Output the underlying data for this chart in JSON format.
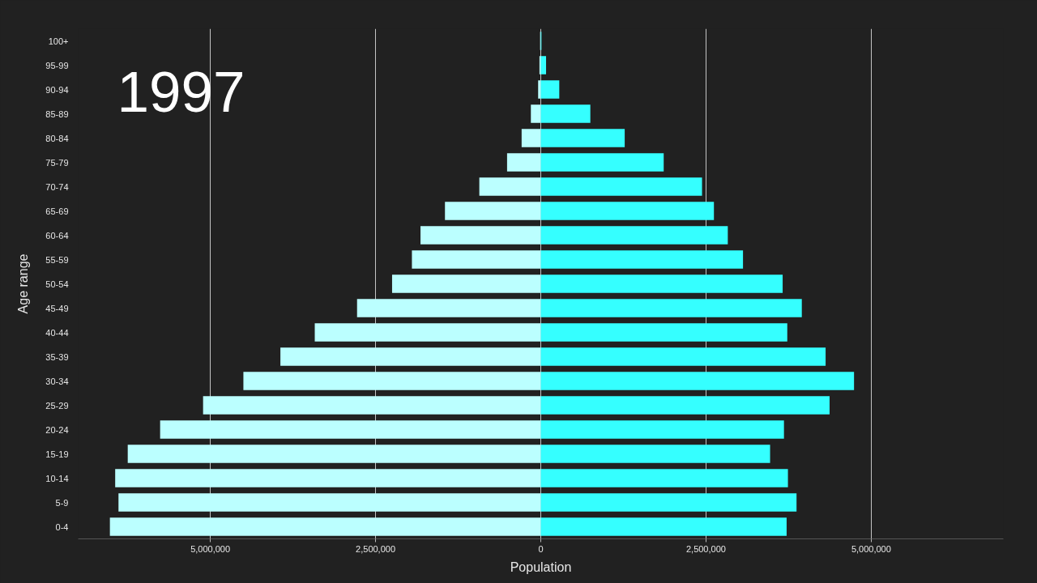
{
  "chart_data": {
    "type": "bar",
    "orientation": "horizontal",
    "stacked": true,
    "xlabel": "Population",
    "ylabel": "Age range",
    "annotations": [
      "1997"
    ],
    "categories": [
      "100+",
      "95-99",
      "90-94",
      "85-89",
      "80-84",
      "75-79",
      "70-74",
      "65-69",
      "60-64",
      "55-59",
      "50-54",
      "45-49",
      "40-44",
      "35-39",
      "30-34",
      "25-29",
      "20-24",
      "15-19",
      "10-14",
      "5-9",
      "0-4"
    ],
    "series": [
      {
        "color": "#bbffff",
        "values": [
          -10000,
          -20000,
          -40000,
          -150000,
          -290000,
          -510000,
          -930000,
          -1450000,
          -1820000,
          -1950000,
          -2250000,
          -2780000,
          -3420000,
          -3940000,
          -4500000,
          -5110000,
          -5760000,
          -6250000,
          -6440000,
          -6390000,
          -6520000
        ]
      },
      {
        "color": "#35ffff",
        "values": [
          10000,
          80000,
          280000,
          750000,
          1270000,
          1860000,
          2440000,
          2620000,
          2830000,
          3060000,
          3660000,
          3950000,
          3730000,
          4310000,
          4740000,
          4370000,
          3680000,
          3470000,
          3740000,
          3870000,
          3720000
        ]
      }
    ],
    "xlim": [
      -7000000,
      7000000
    ],
    "xticks": [
      {
        "value": -5000000,
        "label": "5,000,000"
      },
      {
        "value": -2500000,
        "label": "2,500,000"
      },
      0,
      {
        "value": 2500000,
        "label": "2,500,000"
      },
      {
        "value": 5000000,
        "label": "5,000,000"
      }
    ],
    "grid": "x"
  }
}
